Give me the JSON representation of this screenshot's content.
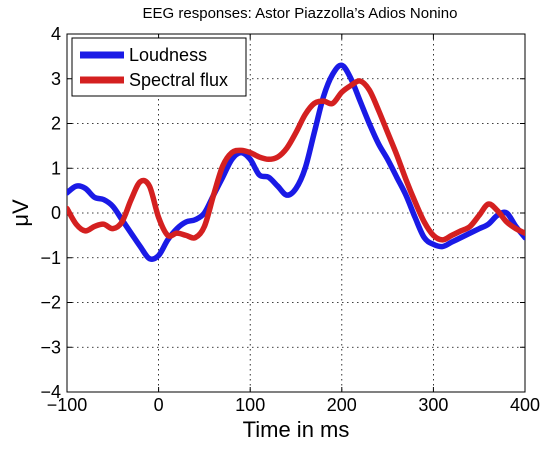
{
  "chart_data": {
    "type": "line",
    "title": "EEG responses: Astor Piazzolla’s Adios Nonino",
    "xlabel": "Time in ms",
    "ylabel": "μV",
    "xlim": [
      -100,
      400
    ],
    "ylim": [
      -4,
      4
    ],
    "xticks": [
      -100,
      0,
      100,
      200,
      300,
      400
    ],
    "yticks": [
      -4,
      -3,
      -2,
      -1,
      0,
      1,
      2,
      3,
      4
    ],
    "xtick_labels": [
      "−100",
      "0",
      "100",
      "200",
      "300",
      "400"
    ],
    "ytick_labels": [
      "−4",
      "−3",
      "−2",
      "−1",
      "0",
      "1",
      "2",
      "3",
      "4"
    ],
    "grid": true,
    "legend_position": "top-left",
    "series": [
      {
        "name": "Loudness",
        "color": "#1a1ae6",
        "x": [
          -100,
          -90,
          -80,
          -70,
          -60,
          -50,
          -40,
          -30,
          -20,
          -10,
          0,
          10,
          20,
          30,
          40,
          50,
          60,
          70,
          80,
          90,
          100,
          110,
          120,
          130,
          140,
          150,
          160,
          170,
          180,
          190,
          200,
          210,
          220,
          230,
          240,
          250,
          260,
          270,
          280,
          290,
          300,
          310,
          320,
          330,
          340,
          350,
          360,
          370,
          380,
          390,
          400
        ],
        "y": [
          0.45,
          0.6,
          0.55,
          0.35,
          0.3,
          0.15,
          -0.15,
          -0.45,
          -0.75,
          -1.02,
          -0.95,
          -0.6,
          -0.35,
          -0.2,
          -0.15,
          0.0,
          0.4,
          0.8,
          1.2,
          1.35,
          1.2,
          0.85,
          0.8,
          0.6,
          0.4,
          0.55,
          1.0,
          1.8,
          2.6,
          3.1,
          3.3,
          3.0,
          2.5,
          2.0,
          1.55,
          1.2,
          0.8,
          0.4,
          -0.1,
          -0.55,
          -0.7,
          -0.75,
          -0.65,
          -0.55,
          -0.45,
          -0.35,
          -0.25,
          -0.05,
          0.0,
          -0.3,
          -0.55
        ]
      },
      {
        "name": "Spectral flux",
        "color": "#d42020",
        "x": [
          -100,
          -90,
          -80,
          -70,
          -60,
          -50,
          -40,
          -30,
          -20,
          -10,
          0,
          10,
          20,
          30,
          40,
          50,
          60,
          70,
          80,
          90,
          100,
          110,
          120,
          130,
          140,
          150,
          160,
          170,
          180,
          190,
          200,
          210,
          220,
          230,
          240,
          250,
          260,
          270,
          280,
          290,
          300,
          310,
          320,
          330,
          340,
          350,
          360,
          370,
          380,
          390,
          400
        ],
        "y": [
          0.1,
          -0.25,
          -0.4,
          -0.3,
          -0.25,
          -0.35,
          -0.2,
          0.3,
          0.7,
          0.6,
          -0.1,
          -0.5,
          -0.45,
          -0.5,
          -0.55,
          -0.3,
          0.4,
          1.05,
          1.35,
          1.4,
          1.35,
          1.25,
          1.2,
          1.25,
          1.45,
          1.8,
          2.2,
          2.45,
          2.5,
          2.45,
          2.7,
          2.85,
          2.95,
          2.75,
          2.3,
          1.8,
          1.3,
          0.75,
          0.25,
          -0.2,
          -0.5,
          -0.6,
          -0.5,
          -0.4,
          -0.3,
          -0.05,
          0.2,
          0.05,
          -0.2,
          -0.35,
          -0.45
        ]
      }
    ]
  }
}
